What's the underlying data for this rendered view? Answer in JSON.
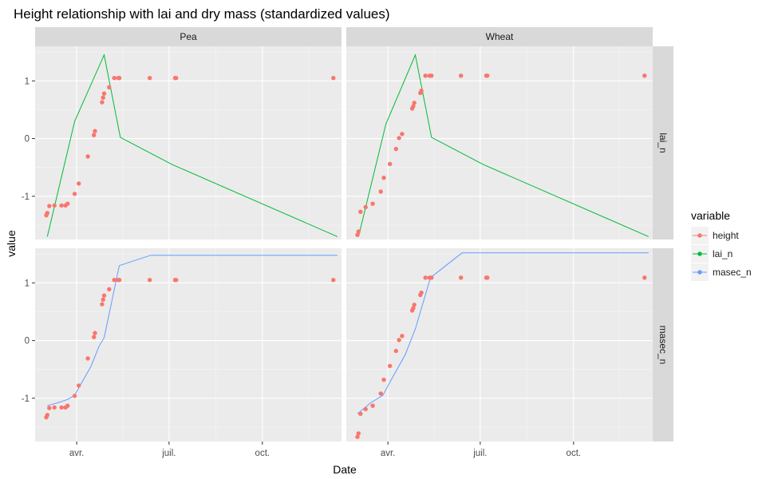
{
  "chart_data": {
    "type": "scatter",
    "title": "Height relationship with lai and dry mass (standardized values)",
    "xlabel": "Date",
    "ylabel": "value",
    "x_axis": {
      "start": "2020-02-20",
      "end": "2020-12-18",
      "tick_dates": [
        "2020-04-01",
        "2020-07-01",
        "2020-10-01"
      ],
      "tick_labels": [
        "avr.",
        "juil.",
        "oct."
      ]
    },
    "ylim": [
      -1.75,
      1.6
    ],
    "y_ticks": [
      -1,
      0,
      1
    ],
    "y_tick_labels": [
      "-1",
      "0",
      "1"
    ],
    "grid": true,
    "facet_columns": [
      "Pea",
      "Wheat"
    ],
    "facet_rows": [
      "lai_n",
      "masec_n"
    ],
    "legend": {
      "title": "variable",
      "position": "right",
      "entries": [
        {
          "label": "height",
          "color": "#f8766d"
        },
        {
          "label": "lai_n",
          "color": "#00ba38"
        },
        {
          "label": "masec_n",
          "color": "#619cff"
        }
      ]
    },
    "series": {
      "Pea": {
        "height": [
          [
            "2020-03-02",
            -1.33
          ],
          [
            "2020-03-03",
            -1.29
          ],
          [
            "2020-03-05",
            -1.17
          ],
          [
            "2020-03-10",
            -1.16
          ],
          [
            "2020-03-17",
            -1.16
          ],
          [
            "2020-03-21",
            -1.16
          ],
          [
            "2020-03-23",
            -1.13
          ],
          [
            "2020-03-30",
            -0.96
          ],
          [
            "2020-04-03",
            -0.78
          ],
          [
            "2020-04-12",
            -0.31
          ],
          [
            "2020-04-18",
            0.06
          ],
          [
            "2020-04-19",
            0.13
          ],
          [
            "2020-04-26",
            0.63
          ],
          [
            "2020-04-27",
            0.71
          ],
          [
            "2020-04-28",
            0.78
          ],
          [
            "2020-05-03",
            0.89
          ],
          [
            "2020-05-08",
            1.05
          ],
          [
            "2020-05-12",
            1.05
          ],
          [
            "2020-05-13",
            1.05
          ],
          [
            "2020-06-12",
            1.05
          ],
          [
            "2020-07-07",
            1.05
          ],
          [
            "2020-07-08",
            1.05
          ],
          [
            "2020-12-10",
            1.05
          ]
        ],
        "lai_n": [
          [
            "2020-03-03",
            -1.7
          ],
          [
            "2020-03-30",
            0.3
          ],
          [
            "2020-04-28",
            1.45
          ],
          [
            "2020-05-14",
            0.02
          ],
          [
            "2020-07-04",
            -0.45
          ],
          [
            "2020-12-14",
            -1.7
          ]
        ],
        "masec_n": [
          [
            "2020-03-03",
            -1.13
          ],
          [
            "2020-03-15",
            -1.07
          ],
          [
            "2020-03-23",
            -1.02
          ],
          [
            "2020-03-30",
            -0.95
          ],
          [
            "2020-04-03",
            -0.82
          ],
          [
            "2020-04-15",
            -0.45
          ],
          [
            "2020-04-23",
            -0.1
          ],
          [
            "2020-04-28",
            0.05
          ],
          [
            "2020-05-13",
            1.3
          ],
          [
            "2020-06-13",
            1.48
          ],
          [
            "2020-12-14",
            1.48
          ]
        ]
      },
      "Wheat": {
        "height": [
          [
            "2020-03-02",
            -1.67
          ],
          [
            "2020-03-03",
            -1.61
          ],
          [
            "2020-03-05",
            -1.27
          ],
          [
            "2020-03-10",
            -1.19
          ],
          [
            "2020-03-17",
            -1.13
          ],
          [
            "2020-03-25",
            -0.92
          ],
          [
            "2020-03-28",
            -0.68
          ],
          [
            "2020-04-03",
            -0.44
          ],
          [
            "2020-04-09",
            -0.18
          ],
          [
            "2020-04-12",
            0.01
          ],
          [
            "2020-04-15",
            0.08
          ],
          [
            "2020-04-25",
            0.52
          ],
          [
            "2020-04-26",
            0.56
          ],
          [
            "2020-04-27",
            0.62
          ],
          [
            "2020-05-03",
            0.79
          ],
          [
            "2020-05-04",
            0.83
          ],
          [
            "2020-05-08",
            1.09
          ],
          [
            "2020-05-12",
            1.09
          ],
          [
            "2020-05-14",
            1.09
          ],
          [
            "2020-06-12",
            1.09
          ],
          [
            "2020-07-07",
            1.09
          ],
          [
            "2020-07-08",
            1.09
          ],
          [
            "2020-12-10",
            1.09
          ]
        ],
        "lai_n": [
          [
            "2020-03-03",
            -1.7
          ],
          [
            "2020-03-30",
            0.25
          ],
          [
            "2020-04-28",
            1.45
          ],
          [
            "2020-05-14",
            0.02
          ],
          [
            "2020-07-04",
            -0.45
          ],
          [
            "2020-12-14",
            -1.7
          ]
        ],
        "masec_n": [
          [
            "2020-03-02",
            -1.27
          ],
          [
            "2020-03-15",
            -1.08
          ],
          [
            "2020-03-27",
            -0.95
          ],
          [
            "2020-04-03",
            -0.72
          ],
          [
            "2020-04-18",
            -0.25
          ],
          [
            "2020-04-28",
            0.2
          ],
          [
            "2020-05-13",
            1.09
          ],
          [
            "2020-06-13",
            1.52
          ],
          [
            "2020-12-14",
            1.52
          ]
        ]
      }
    }
  }
}
